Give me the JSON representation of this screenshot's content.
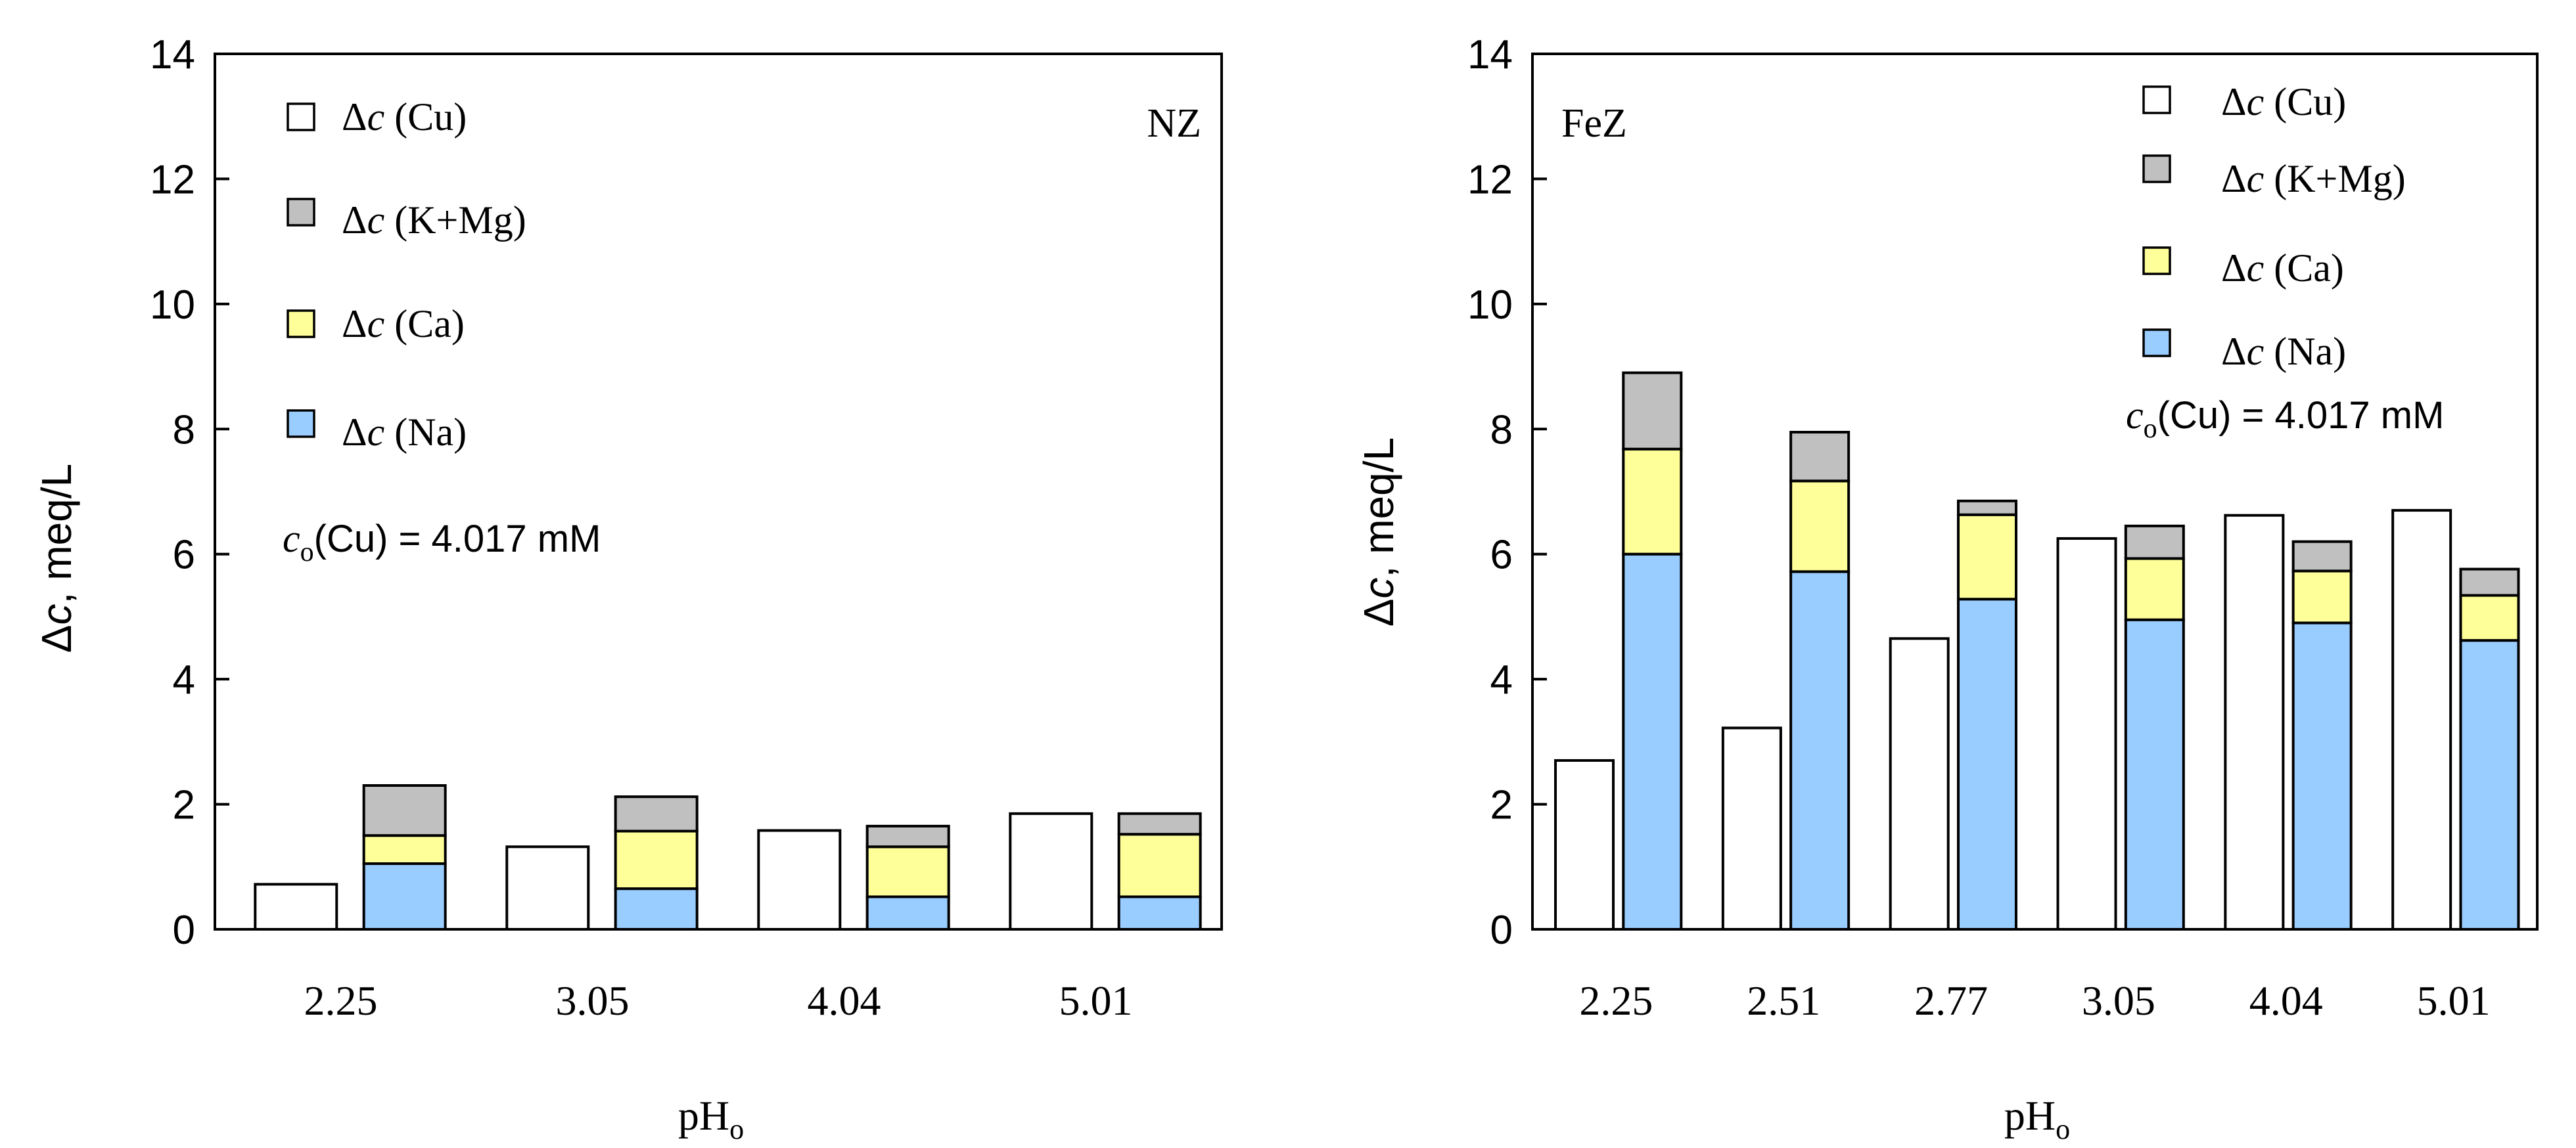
{
  "colors": {
    "cu": "#ffffff",
    "kmg": "#c0c0c0",
    "ca": "#ffff99",
    "na": "#99ccff",
    "stroke": "#000000"
  },
  "ylabel_prefix": "Δ",
  "ylabel_var": "c",
  "ylabel_suffix": ", meq/L",
  "xlabel_main": "pH",
  "xlabel_sub": "o",
  "legend": [
    {
      "key": "cu",
      "prefix": "Δ",
      "var": "c",
      "text": " (Cu)"
    },
    {
      "key": "kmg",
      "prefix": "Δ",
      "var": "c",
      "text": " (K+Mg)"
    },
    {
      "key": "ca",
      "prefix": "Δ",
      "var": "c",
      "text": " (Ca)"
    },
    {
      "key": "na",
      "prefix": "Δ",
      "var": "c",
      "text": " (Na)"
    }
  ],
  "conc_note": {
    "var": "c",
    "sub": "o",
    "text": "(Cu) = 4.017 mM"
  },
  "chart_data": [
    {
      "type": "bar",
      "title": "NZ",
      "categories": [
        "2.25",
        "3.05",
        "4.04",
        "5.01"
      ],
      "ylim": [
        0,
        14
      ],
      "yticks": [
        "0",
        "2",
        "4",
        "6",
        "8",
        "10",
        "12",
        "14"
      ],
      "series": [
        {
          "name": "Δc (Cu)",
          "stack": "cu",
          "values": [
            0.72,
            1.32,
            1.58,
            1.85
          ]
        },
        {
          "name": "Δc (Na)",
          "stack": "cations",
          "values": [
            1.05,
            0.65,
            0.52,
            0.52
          ]
        },
        {
          "name": "Δc (Ca)",
          "stack": "cations",
          "values": [
            0.45,
            0.92,
            0.8,
            1.0
          ]
        },
        {
          "name": "Δc (K+Mg)",
          "stack": "cations",
          "values": [
            0.8,
            0.55,
            0.33,
            0.33
          ]
        }
      ]
    },
    {
      "type": "bar",
      "title": "FeZ",
      "categories": [
        "2.25",
        "2.51",
        "2.77",
        "3.05",
        "4.04",
        "5.01"
      ],
      "ylim": [
        0,
        14
      ],
      "yticks": [
        "0",
        "2",
        "4",
        "6",
        "8",
        "10",
        "12",
        "14"
      ],
      "series": [
        {
          "name": "Δc (Cu)",
          "stack": "cu",
          "values": [
            2.7,
            3.22,
            4.65,
            6.25,
            6.62,
            6.7
          ]
        },
        {
          "name": "Δc (Na)",
          "stack": "cations",
          "values": [
            6.0,
            5.72,
            5.28,
            4.95,
            4.9,
            4.62
          ]
        },
        {
          "name": "Δc (Ca)",
          "stack": "cations",
          "values": [
            1.68,
            1.45,
            1.35,
            0.98,
            0.83,
            0.72
          ]
        },
        {
          "name": "Δc (K+Mg)",
          "stack": "cations",
          "values": [
            1.22,
            0.78,
            0.22,
            0.52,
            0.47,
            0.42
          ]
        }
      ]
    }
  ]
}
